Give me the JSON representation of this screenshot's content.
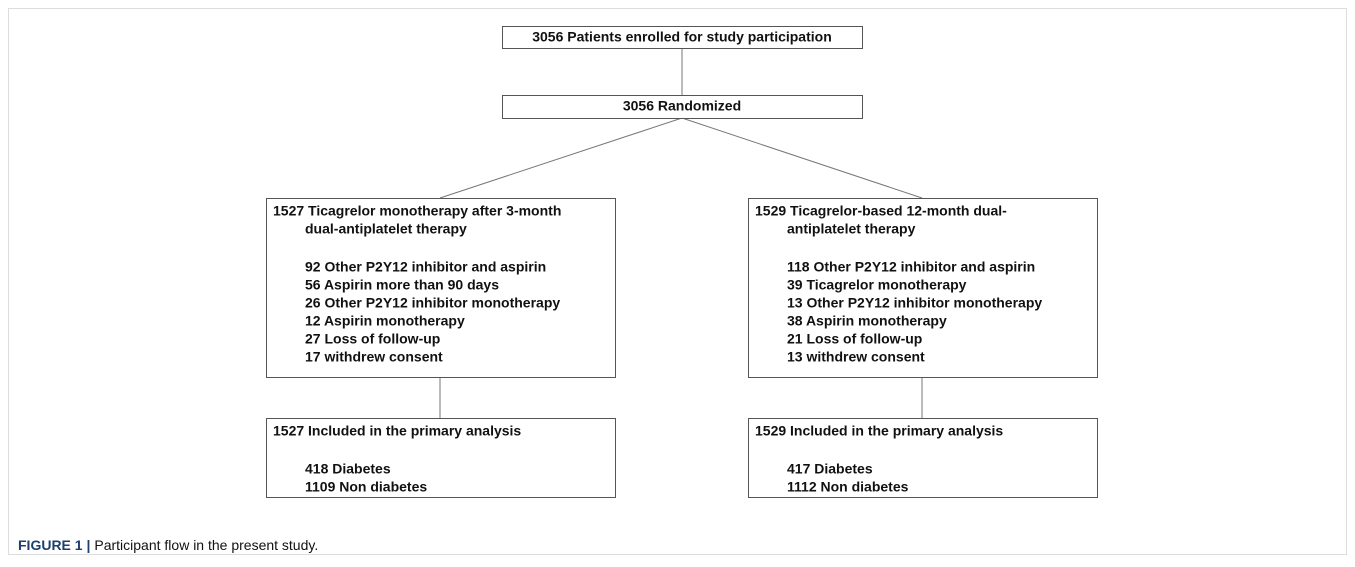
{
  "nodes": [
    {
      "label": "3056 Patients enrolled for study participation"
    },
    {
      "label": "3056 Randomized"
    },
    {
      "lines": [
        "1527 Ticagrelor monotherapy after 3-month",
        "dual-antiplatelet therapy"
      ],
      "items": [
        "92 Other P2Y12 inhibitor and aspirin",
        "56 Aspirin more than 90 days",
        "26 Other P2Y12 inhibitor monotherapy",
        "12 Aspirin monotherapy",
        "27 Loss of follow-up",
        "17 withdrew consent"
      ]
    },
    {
      "lines": [
        "1529 Ticagrelor-based 12-month dual-",
        "antiplatelet therapy"
      ],
      "items": [
        "118 Other P2Y12 inhibitor and aspirin",
        "39 Ticagrelor monotherapy",
        "13 Other P2Y12 inhibitor monotherapy",
        "38 Aspirin monotherapy",
        "21 Loss of follow-up",
        "13 withdrew consent"
      ]
    },
    {
      "lines": [
        "1527 Included in the primary analysis"
      ],
      "items": [
        "418 Diabetes",
        "1109 Non diabetes"
      ]
    },
    {
      "lines": [
        "1529 Included in the primary analysis"
      ],
      "items": [
        "417 Diabetes",
        "1112 Non diabetes"
      ]
    }
  ],
  "caption": {
    "label": "FIGURE 1 |",
    "text": "Participant flow in the present study."
  }
}
